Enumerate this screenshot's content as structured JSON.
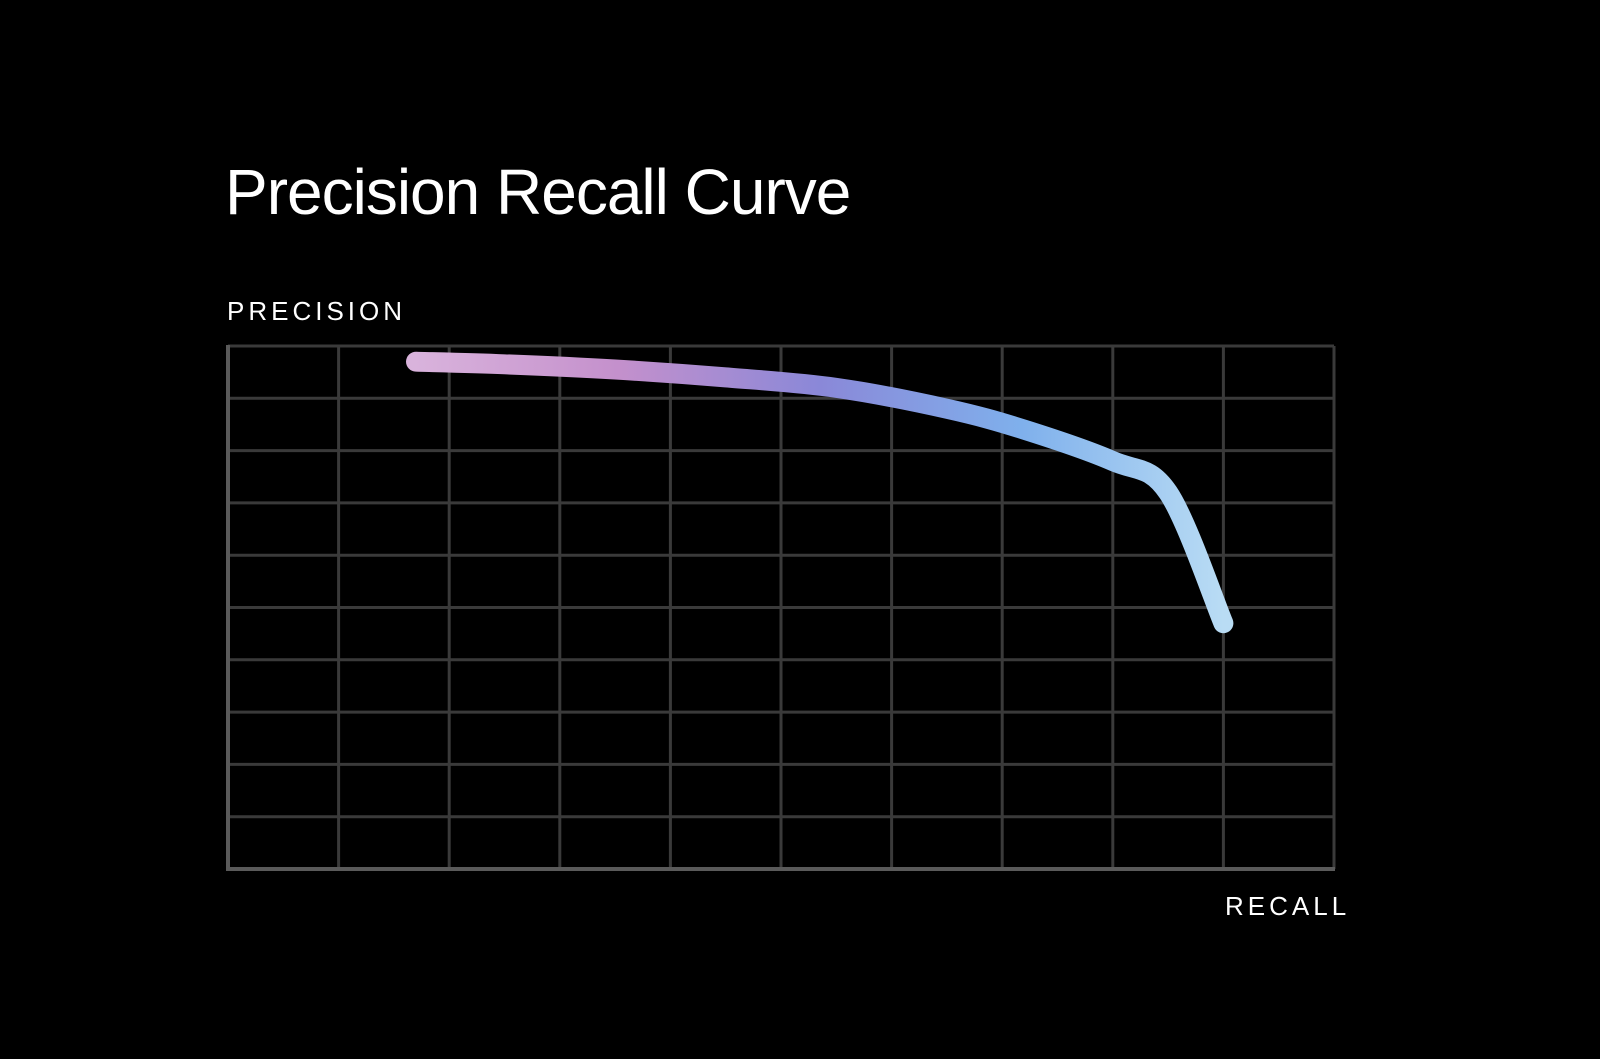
{
  "chart_data": {
    "type": "line",
    "title": "Precision Recall Curve",
    "xlabel": "RECALL",
    "ylabel": "PRECISION",
    "xlim": [
      0,
      1
    ],
    "ylim": [
      0,
      1
    ],
    "grid": true,
    "x_gridlines": 10,
    "y_gridlines": 10,
    "gradient_colors": [
      "#d9b3dc",
      "#c490cc",
      "#8a88d8",
      "#7fb0ec",
      "#b9dcf4"
    ],
    "series": [
      {
        "x": [
          0.17,
          0.25,
          0.35,
          0.45,
          0.55,
          0.65,
          0.72,
          0.8,
          0.85,
          0.9
        ],
        "y": [
          0.97,
          0.965,
          0.955,
          0.94,
          0.92,
          0.88,
          0.84,
          0.78,
          0.72,
          0.47
        ]
      }
    ]
  }
}
